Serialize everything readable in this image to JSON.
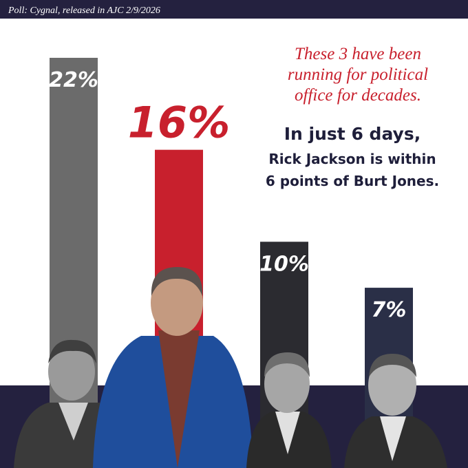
{
  "chart_data": {
    "type": "bar",
    "source": "Poll: Cygnal, released in AJC 2/9/2026",
    "values": [
      22,
      16,
      10,
      7
    ],
    "value_labels": [
      "22%",
      "16%",
      "10%",
      "7%"
    ],
    "colors": [
      "#6b6b6b",
      "#c8202d",
      "#2b2b30",
      "#2a2f47"
    ],
    "note_lines": [
      "These 3 have been",
      "running for political",
      "office for decades."
    ],
    "headline": "In just 6 days,",
    "sub_lines": [
      "Rick Jackson is within",
      "6 points of Burt Jones."
    ]
  }
}
